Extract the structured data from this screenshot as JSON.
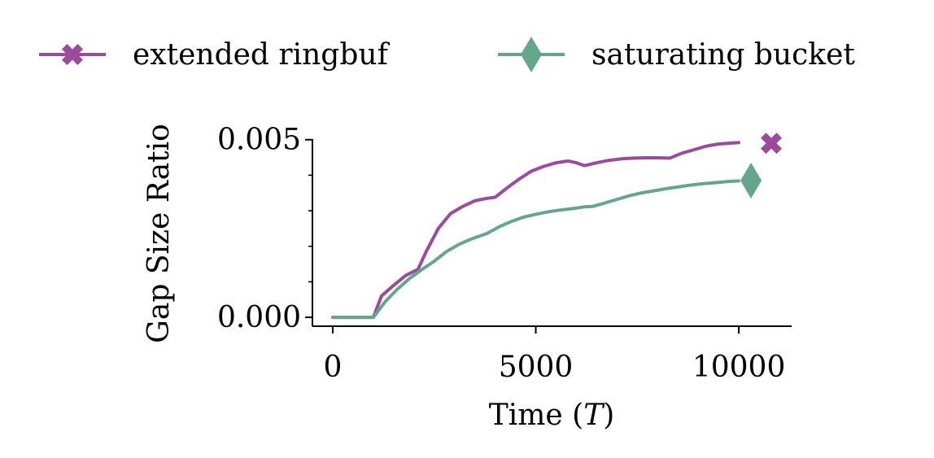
{
  "chart_data": {
    "type": "line",
    "xlabel_main": "Time (",
    "xlabel_italic": "T",
    "xlabel_close": ")",
    "ylabel": "Gap Size Ratio",
    "xlim": [
      -500,
      11300
    ],
    "ylim": [
      -0.00025,
      0.0052
    ],
    "x_ticks": [
      0,
      5000,
      10000
    ],
    "x_tick_labels": [
      "0",
      "5000",
      "10000"
    ],
    "y_ticks": [
      0.0,
      0.005
    ],
    "y_tick_labels": [
      "0.000",
      "0.005"
    ],
    "y_minor_ticks": [
      0.001,
      0.002,
      0.003,
      0.004
    ],
    "grid": false,
    "legend_position": "top",
    "series": [
      {
        "name": "extended ringbuf",
        "color": "#9a4b9c",
        "marker": "x-filled",
        "marker_point": [
          10800,
          0.0049
        ],
        "x": [
          0,
          1000,
          1200,
          1500,
          1800,
          2100,
          2300,
          2600,
          2900,
          3200,
          3500,
          3800,
          4000,
          4300,
          4600,
          4900,
          5200,
          5500,
          5800,
          6000,
          6200,
          6500,
          6800,
          7100,
          7400,
          7700,
          8000,
          8300,
          8600,
          8900,
          9200,
          9500,
          10000
        ],
        "y": [
          0.0,
          0.0,
          0.0006,
          0.0009,
          0.00118,
          0.00135,
          0.00185,
          0.0025,
          0.00292,
          0.00312,
          0.00328,
          0.00335,
          0.00338,
          0.00365,
          0.0039,
          0.00412,
          0.00425,
          0.00435,
          0.0044,
          0.00435,
          0.00427,
          0.00435,
          0.00442,
          0.00446,
          0.00448,
          0.00449,
          0.00449,
          0.00448,
          0.00462,
          0.00472,
          0.00482,
          0.00488,
          0.00492
        ]
      },
      {
        "name": "saturating bucket",
        "color": "#64a68a",
        "marker": "thin-diamond",
        "marker_point": [
          10300,
          0.00385
        ],
        "x": [
          0,
          1000,
          1300,
          1600,
          1900,
          2200,
          2500,
          2800,
          3100,
          3400,
          3800,
          4100,
          4400,
          4700,
          5000,
          5300,
          5600,
          5900,
          6200,
          6400,
          6700,
          7000,
          7300,
          7600,
          7900,
          8200,
          8500,
          8800,
          9100,
          9400,
          9700,
          10000
        ],
        "y": [
          0.0,
          0.0,
          0.00045,
          0.0008,
          0.0011,
          0.00135,
          0.00158,
          0.00185,
          0.00205,
          0.0022,
          0.00236,
          0.00255,
          0.0027,
          0.00282,
          0.0029,
          0.00297,
          0.00302,
          0.00306,
          0.00311,
          0.00312,
          0.00322,
          0.00332,
          0.00342,
          0.0035,
          0.00356,
          0.00362,
          0.00367,
          0.00372,
          0.00376,
          0.00379,
          0.00382,
          0.00384
        ]
      }
    ]
  }
}
